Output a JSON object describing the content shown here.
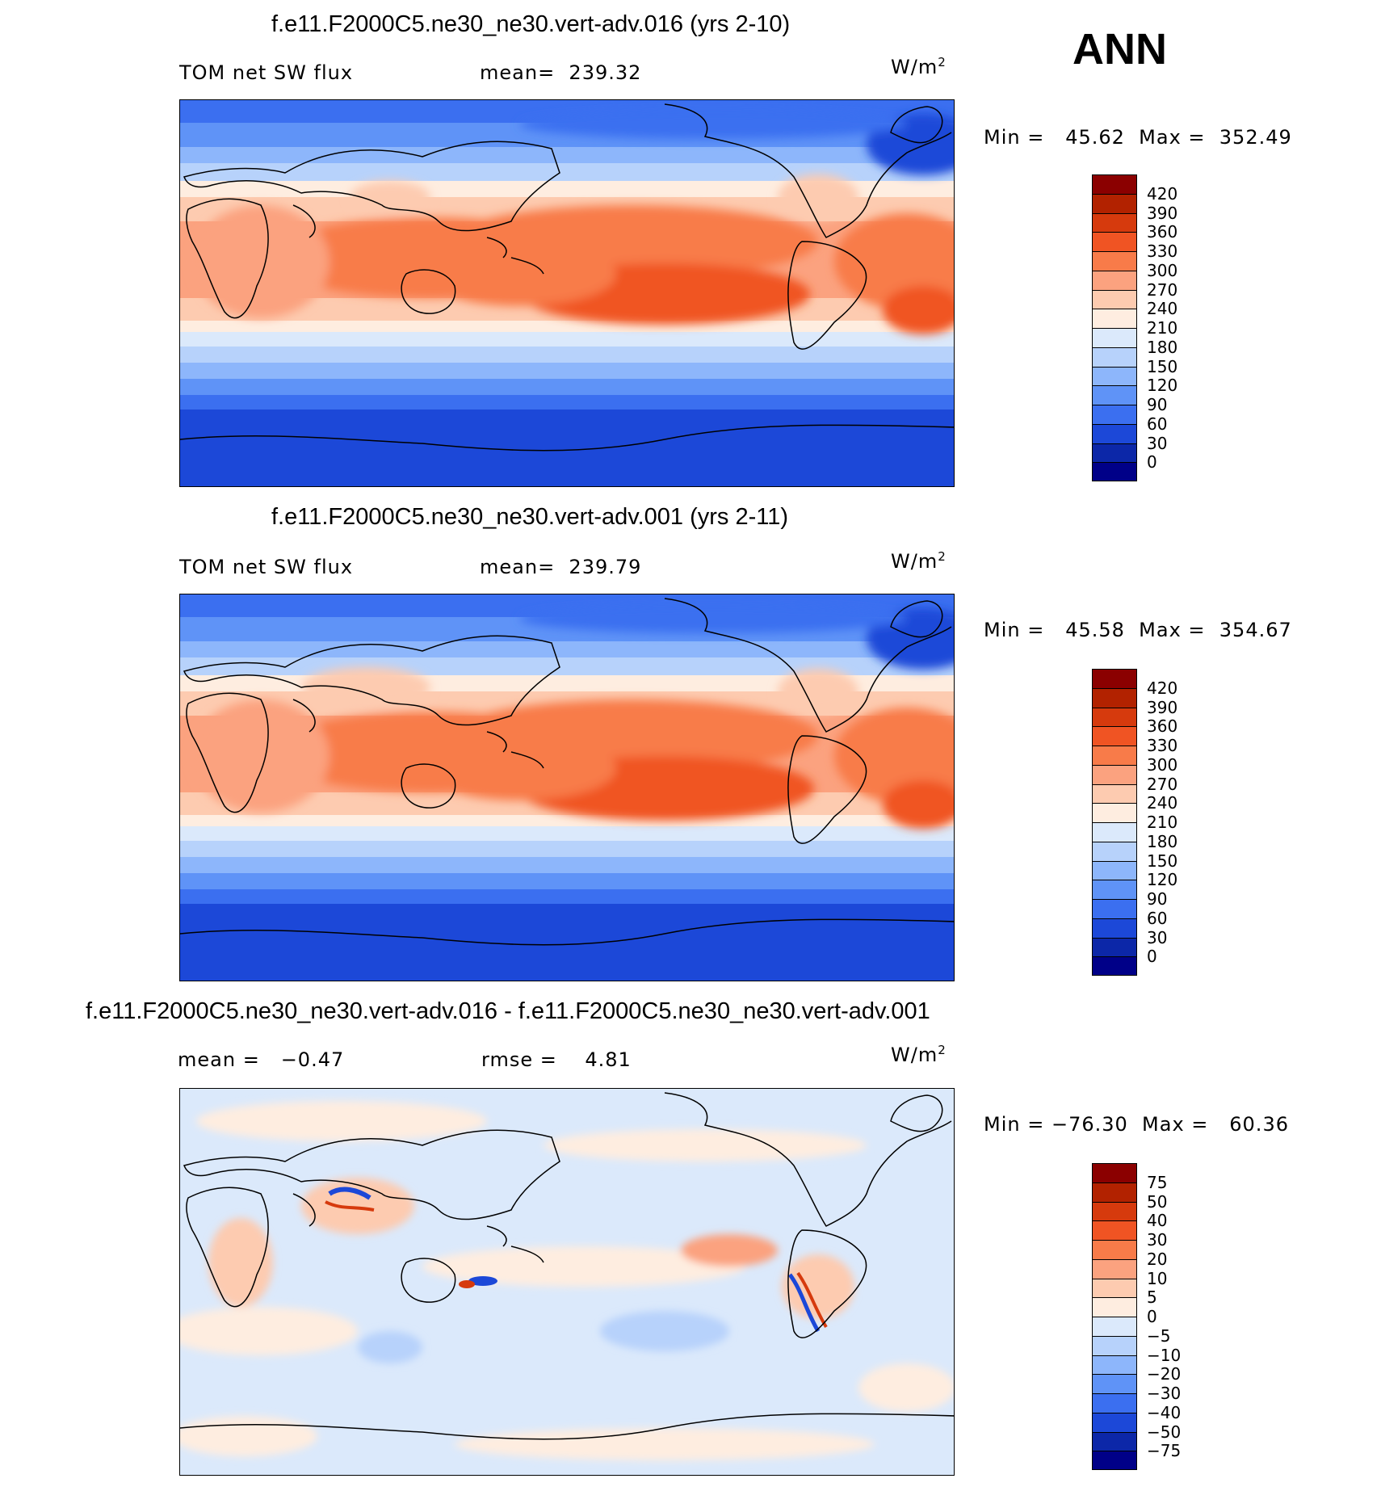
{
  "season": "ANN",
  "panels": [
    {
      "title": "f.e11.F2000C5.ne30_ne30.vert-adv.016 (yrs 2-10)",
      "variable": "TOM net SW flux",
      "stat": "mean=  239.32",
      "units_base": "W/m",
      "units_exp": "2",
      "minmax": "Min =   45.62  Max =  352.49"
    },
    {
      "title": "f.e11.F2000C5.ne30_ne30.vert-adv.001 (yrs 2-11)",
      "variable": "TOM net SW flux",
      "stat": "mean=  239.79",
      "units_base": "W/m",
      "units_exp": "2",
      "minmax": "Min =   45.58  Max =  354.67"
    },
    {
      "title": "f.e11.F2000C5.ne30_ne30.vert-adv.016 - f.e11.F2000C5.ne30_ne30.vert-adv.001",
      "variable": "mean =   −0.47",
      "stat": "rmse =    4.81",
      "units_base": "W/m",
      "units_exp": "2",
      "minmax": "Min = −76.30  Max =   60.36"
    }
  ],
  "colorbar_abs": {
    "labels": [
      "420",
      "390",
      "360",
      "330",
      "300",
      "270",
      "240",
      "210",
      "180",
      "150",
      "120",
      "90",
      "60",
      "30",
      "0"
    ],
    "colors": [
      "#8b0000",
      "#b22200",
      "#d63a0d",
      "#f05423",
      "#f87b49",
      "#fba27f",
      "#fdcbb0",
      "#feede0",
      "#dbe9fb",
      "#b7d2fb",
      "#8db6fb",
      "#5f93f7",
      "#3b6ff0",
      "#1c48d8",
      "#0c27a8",
      "#000088"
    ]
  },
  "colorbar_diff": {
    "labels": [
      "75",
      "50",
      "40",
      "30",
      "20",
      "10",
      "5",
      "0",
      "−5",
      "−10",
      "−20",
      "−30",
      "−40",
      "−50",
      "−75"
    ],
    "colors": [
      "#8b0000",
      "#b22200",
      "#d63a0d",
      "#f05423",
      "#f87b49",
      "#fba27f",
      "#fdcbb0",
      "#feede0",
      "#dbe9fb",
      "#b7d2fb",
      "#8db6fb",
      "#5f93f7",
      "#3b6ff0",
      "#1c48d8",
      "#0c27a8",
      "#000088"
    ]
  }
}
